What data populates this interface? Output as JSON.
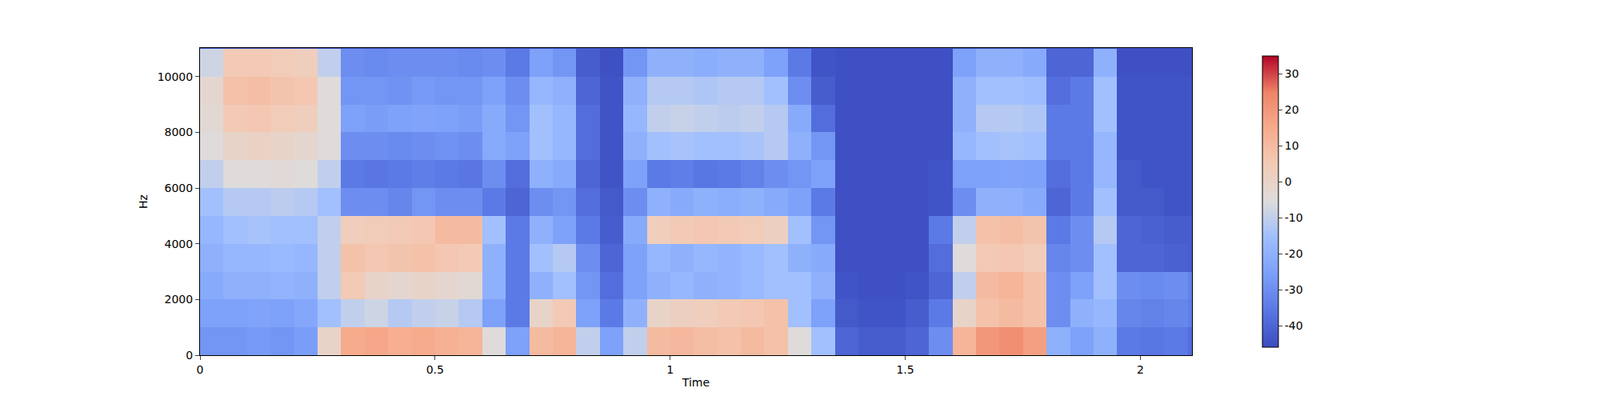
{
  "chart_data": {
    "type": "heatmap",
    "xlabel": "Time",
    "ylabel": "Hz",
    "xlim": [
      0,
      2.11
    ],
    "xticks": [
      0,
      0.5,
      1,
      1.5,
      2
    ],
    "ylim": [
      0,
      11025
    ],
    "yticks": [
      0,
      2000,
      4000,
      6000,
      8000,
      10000
    ],
    "zlim": [
      -46,
      35
    ],
    "zticks": [
      -40,
      -30,
      -20,
      -10,
      0,
      10,
      20,
      30
    ],
    "x": [
      0.025,
      0.075,
      0.125,
      0.175,
      0.225,
      0.275,
      0.325,
      0.375,
      0.425,
      0.475,
      0.525,
      0.575,
      0.625,
      0.675,
      0.725,
      0.775,
      0.825,
      0.875,
      0.925,
      0.975,
      1.025,
      1.075,
      1.125,
      1.175,
      1.225,
      1.275,
      1.325,
      1.375,
      1.425,
      1.475,
      1.525,
      1.575,
      1.625,
      1.675,
      1.725,
      1.775,
      1.825,
      1.875,
      1.925,
      1.975,
      2.025,
      2.075,
      2.125
    ],
    "y": [
      500,
      1500,
      2500,
      3500,
      4500,
      5500,
      6500,
      7500,
      8500,
      9500,
      10500,
      11500
    ],
    "z": [
      [
        -28,
        -28,
        -27,
        -28,
        -26,
        0,
        15,
        16,
        14,
        15,
        13,
        12,
        -5,
        -25,
        10,
        12,
        -10,
        -25,
        -10,
        10,
        11,
        9,
        8,
        10,
        8,
        -5,
        -15,
        -40,
        -42,
        -42,
        -40,
        -30,
        12,
        20,
        22,
        18,
        -20,
        -25,
        -20,
        -35,
        -36,
        -35,
        -38
      ],
      [
        -25,
        -25,
        -24,
        -25,
        -23,
        -15,
        -10,
        -8,
        -12,
        -10,
        -9,
        -12,
        -25,
        -35,
        0,
        5,
        -25,
        -35,
        -20,
        0,
        2,
        3,
        5,
        6,
        8,
        -15,
        -25,
        -43,
        -44,
        -44,
        -42,
        -35,
        0,
        8,
        10,
        8,
        -30,
        -20,
        -18,
        -32,
        -33,
        -32,
        -34
      ],
      [
        -22,
        -20,
        -20,
        -19,
        -20,
        -10,
        5,
        0,
        -2,
        0,
        -2,
        -3,
        -20,
        -35,
        -20,
        -15,
        -28,
        -38,
        -25,
        -20,
        -18,
        -20,
        -19,
        -17,
        -15,
        -15,
        -20,
        -44,
        -45,
        -45,
        -44,
        -40,
        -10,
        10,
        12,
        8,
        -30,
        -25,
        -15,
        -30,
        -31,
        -30,
        -33
      ],
      [
        -20,
        -18,
        -18,
        -17,
        -18,
        -10,
        8,
        6,
        7,
        8,
        6,
        5,
        -20,
        -35,
        -15,
        -12,
        -30,
        -40,
        -25,
        -18,
        -20,
        -18,
        -19,
        -17,
        -15,
        -20,
        -22,
        -45,
        -45,
        -45,
        -45,
        -38,
        -5,
        5,
        6,
        4,
        -32,
        -30,
        -15,
        -40,
        -40,
        -41,
        -42
      ],
      [
        -18,
        -15,
        -14,
        -15,
        -15,
        -10,
        3,
        4,
        5,
        6,
        10,
        10,
        -15,
        -35,
        -20,
        -25,
        -35,
        -42,
        -22,
        3,
        5,
        6,
        5,
        4,
        2,
        -15,
        -28,
        -45,
        -45,
        -45,
        -45,
        -35,
        -10,
        8,
        9,
        7,
        -35,
        -30,
        -12,
        -40,
        -41,
        -42,
        -42
      ],
      [
        -15,
        -12,
        -12,
        -11,
        -12,
        -15,
        -30,
        -30,
        -32,
        -28,
        -30,
        -30,
        -35,
        -40,
        -30,
        -28,
        -38,
        -43,
        -30,
        -20,
        -22,
        -20,
        -21,
        -20,
        -22,
        -25,
        -35,
        -45,
        -45,
        -45,
        -45,
        -44,
        -30,
        -20,
        -20,
        -22,
        -40,
        -35,
        -15,
        -43,
        -43,
        -44,
        -44
      ],
      [
        -10,
        -5,
        -5,
        -4,
        -5,
        -10,
        -35,
        -36,
        -35,
        -34,
        -35,
        -36,
        -30,
        -38,
        -20,
        -22,
        -40,
        -44,
        -25,
        -35,
        -34,
        -36,
        -35,
        -33,
        -30,
        -28,
        -25,
        -45,
        -45,
        -45,
        -45,
        -44,
        -25,
        -25,
        -24,
        -25,
        -38,
        -35,
        -18,
        -43,
        -44,
        -44,
        -44
      ],
      [
        -5,
        0,
        1,
        0,
        -2,
        -5,
        -30,
        -30,
        -31,
        -30,
        -29,
        -30,
        -22,
        -25,
        -15,
        -18,
        -38,
        -44,
        -20,
        -15,
        -14,
        -15,
        -15,
        -14,
        -12,
        -20,
        -28,
        -45,
        -45,
        -45,
        -45,
        -45,
        -18,
        -15,
        -14,
        -15,
        -35,
        -35,
        -18,
        -44,
        -44,
        -44,
        -44
      ],
      [
        -3,
        5,
        6,
        4,
        3,
        -5,
        -25,
        -26,
        -25,
        -24,
        -25,
        -26,
        -22,
        -28,
        -15,
        -18,
        -38,
        -44,
        -18,
        -10,
        -9,
        -10,
        -11,
        -10,
        -12,
        -22,
        -38,
        -45,
        -45,
        -45,
        -45,
        -45,
        -20,
        -12,
        -12,
        -13,
        -35,
        -35,
        -15,
        -44,
        -44,
        -44,
        -44
      ],
      [
        -2,
        8,
        9,
        7,
        6,
        -5,
        -28,
        -28,
        -29,
        -27,
        -28,
        -28,
        -25,
        -30,
        -18,
        -20,
        -40,
        -44,
        -20,
        -12,
        -12,
        -13,
        -12,
        -12,
        -15,
        -30,
        -42,
        -45,
        -45,
        -45,
        -45,
        -45,
        -20,
        -15,
        -15,
        -16,
        -38,
        -35,
        -15,
        -44,
        -44,
        -44,
        -44
      ],
      [
        -8,
        5,
        5,
        4,
        3,
        -10,
        -30,
        -31,
        -30,
        -30,
        -30,
        -31,
        -30,
        -35,
        -25,
        -28,
        -42,
        -45,
        -28,
        -20,
        -20,
        -21,
        -20,
        -20,
        -25,
        -35,
        -44,
        -45,
        -45,
        -45,
        -45,
        -45,
        -25,
        -20,
        -20,
        -22,
        -40,
        -40,
        -20,
        -45,
        -45,
        -45,
        -45
      ],
      [
        -44,
        -44,
        -44,
        -44,
        -44,
        -44,
        -44,
        -44,
        -44,
        -44,
        -44,
        -44,
        -44,
        -44,
        -44,
        -44,
        -44,
        -44,
        -44,
        -44,
        -44,
        -44,
        -44,
        -44,
        -44,
        -44,
        -44,
        -44,
        -44,
        -44,
        -44,
        -44,
        -44,
        -44,
        -44,
        -44,
        -44,
        -44,
        -44,
        -44,
        -44,
        -44,
        -44
      ]
    ]
  }
}
